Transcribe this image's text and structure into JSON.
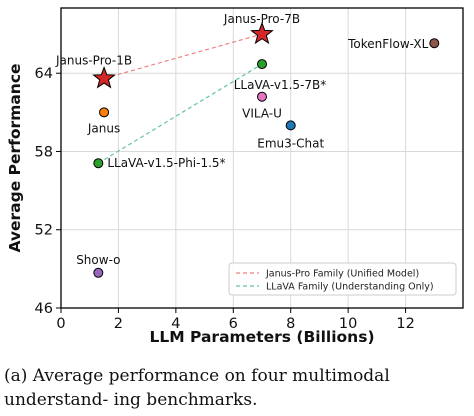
{
  "chart_data": {
    "type": "scatter",
    "xlabel": "LLM Parameters (Billions)",
    "ylabel": "Average Performance",
    "xlim": [
      0,
      14
    ],
    "ylim": [
      46,
      69
    ],
    "xticks": [
      0,
      2,
      4,
      6,
      8,
      10,
      12
    ],
    "yticks": [
      46,
      52,
      58,
      64
    ],
    "grid": true,
    "legend_position": "bottom-right",
    "points": [
      {
        "label": "Janus-Pro-7B",
        "x": 7.0,
        "y": 67.0,
        "color": "#d62728",
        "marker": "star"
      },
      {
        "label": "Janus-Pro-1B",
        "x": 1.5,
        "y": 63.6,
        "color": "#d62728",
        "marker": "star"
      },
      {
        "label": "TokenFlow-XL",
        "x": 13.0,
        "y": 66.3,
        "color": "#8c564b",
        "marker": "circle"
      },
      {
        "label": "LLaVA-v1.5-7B*",
        "x": 7.0,
        "y": 64.7,
        "color": "#2ca02c",
        "marker": "circle"
      },
      {
        "label": "VILA-U",
        "x": 7.0,
        "y": 62.2,
        "color": "#e377c2",
        "marker": "circle"
      },
      {
        "label": "Janus",
        "x": 1.5,
        "y": 61.0,
        "color": "#ff7f0e",
        "marker": "circle"
      },
      {
        "label": "Emu3-Chat",
        "x": 8.0,
        "y": 60.0,
        "color": "#1f77b4",
        "marker": "circle"
      },
      {
        "label": "LLaVA-v1.5-Phi-1.5*",
        "x": 1.3,
        "y": 57.1,
        "color": "#2ca02c",
        "marker": "circle"
      },
      {
        "label": "Show-o",
        "x": 1.3,
        "y": 48.7,
        "color": "#9467bd",
        "marker": "circle"
      }
    ],
    "series": [
      {
        "name": "Janus-Pro Family (Unified Model)",
        "x": [
          1.5,
          7.0
        ],
        "y": [
          63.6,
          67.0
        ],
        "color": "#f08080",
        "style": "dashed"
      },
      {
        "name": "LLaVA Family (Understanding Only)",
        "x": [
          1.3,
          7.0
        ],
        "y": [
          57.1,
          64.7
        ],
        "color": "#66c2a5",
        "style": "dashed"
      }
    ]
  },
  "caption": "(a) Average performance on four multimodal understand-\ning benchmarks."
}
